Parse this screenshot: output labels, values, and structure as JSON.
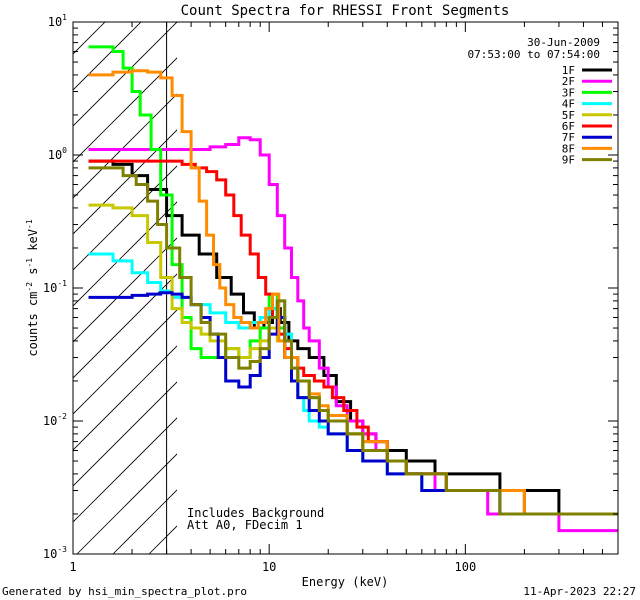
{
  "chart_data": {
    "type": "line",
    "title": "Count Spectra for RHESSI Front Segments",
    "date": "30-Jun-2009",
    "time_range": "07:53:00 to 07:54:00",
    "xlabel": "Energy (keV)",
    "ylabel_parts": [
      "counts cm",
      "-2",
      " s",
      "-1",
      " keV",
      "-1"
    ],
    "xscale": "log",
    "yscale": "log",
    "xlim": [
      1,
      600
    ],
    "ylim": [
      0.001,
      10
    ],
    "x_ticks": [
      {
        "value": 1,
        "label": "1"
      },
      {
        "value": 10,
        "label": "10"
      },
      {
        "value": 100,
        "label": "100"
      }
    ],
    "y_ticks": [
      {
        "value": 10,
        "base": "10",
        "exp": "1"
      },
      {
        "value": 1,
        "base": "10",
        "exp": "0"
      },
      {
        "value": 0.1,
        "base": "10",
        "exp": "-1"
      },
      {
        "value": 0.01,
        "base": "10",
        "exp": "-2"
      },
      {
        "value": 0.001,
        "base": "10",
        "exp": "-3"
      }
    ],
    "hatched_region_keV": [
      1,
      3
    ],
    "annotations": [
      "Includes Background",
      "Att A0, FDecim 1"
    ],
    "footer_left": "Generated by hsi_min_spectra_plot.pro",
    "footer_right": "11-Apr-2023 22:27",
    "legend_position": "top-right",
    "series": [
      {
        "name": "1F",
        "color": "#000000",
        "x": [
          1.2,
          1.6,
          2.0,
          2.4,
          3.0,
          3.6,
          4.4,
          5.4,
          6.4,
          7.4,
          8.4,
          9.4,
          10.4,
          11.4,
          12.6,
          14,
          16,
          19,
          22,
          26,
          30,
          35,
          40,
          50,
          60,
          70,
          80,
          100,
          120,
          150,
          200,
          250,
          300,
          400,
          500,
          600
        ],
        "y": [
          0.9,
          0.85,
          0.7,
          0.55,
          0.35,
          0.25,
          0.18,
          0.12,
          0.09,
          0.065,
          0.05,
          0.055,
          0.07,
          0.055,
          0.04,
          0.035,
          0.03,
          0.022,
          0.014,
          0.01,
          0.008,
          0.007,
          0.006,
          0.005,
          0.005,
          0.004,
          0.004,
          0.004,
          0.004,
          0.003,
          0.003,
          0.003,
          0.002,
          0.002,
          0.002,
          0.002
        ]
      },
      {
        "name": "2F",
        "color": "#ff00ff",
        "x": [
          1.2,
          2.0,
          3.0,
          4.0,
          5.0,
          6.0,
          7.0,
          8.0,
          9.0,
          10.0,
          11.0,
          12.0,
          13.0,
          14.0,
          15.0,
          16.0,
          18,
          20,
          22,
          25,
          30,
          35,
          40,
          50,
          60,
          70,
          80,
          100,
          130,
          160,
          200,
          250,
          300,
          400,
          500,
          600
        ],
        "y": [
          1.1,
          1.1,
          1.1,
          1.1,
          1.15,
          1.2,
          1.35,
          1.3,
          1.0,
          0.6,
          0.35,
          0.2,
          0.12,
          0.08,
          0.05,
          0.04,
          0.025,
          0.018,
          0.013,
          0.01,
          0.008,
          0.006,
          0.005,
          0.004,
          0.004,
          0.003,
          0.003,
          0.003,
          0.002,
          0.002,
          0.002,
          0.002,
          0.0015,
          0.0015,
          0.0015,
          0.0015
        ]
      },
      {
        "name": "3F",
        "color": "#00ff00",
        "x": [
          1.2,
          1.4,
          1.6,
          1.8,
          2.0,
          2.2,
          2.5,
          2.8,
          3.2,
          3.6,
          4.0,
          4.5,
          5.0,
          6.0,
          7.0,
          8.0,
          9.0,
          10.0,
          11.0,
          12,
          13,
          14,
          16,
          18,
          20,
          25,
          30,
          40,
          50,
          60,
          80,
          100,
          150,
          200,
          300,
          400,
          600
        ],
        "y": [
          6.5,
          6.5,
          6.0,
          4.5,
          3.0,
          2.0,
          1.1,
          0.5,
          0.15,
          0.06,
          0.035,
          0.03,
          0.03,
          0.035,
          0.03,
          0.04,
          0.05,
          0.09,
          0.05,
          0.03,
          0.02,
          0.02,
          0.015,
          0.012,
          0.01,
          0.008,
          0.006,
          0.005,
          0.004,
          0.004,
          0.003,
          0.003,
          0.003,
          0.002,
          0.002,
          0.002,
          0.002
        ]
      },
      {
        "name": "4F",
        "color": "#00ffff",
        "x": [
          1.2,
          1.6,
          2.0,
          2.4,
          2.8,
          3.2,
          4.0,
          5.0,
          6.0,
          7.0,
          8.0,
          9.0,
          10.0,
          11.0,
          12,
          13,
          14,
          15,
          16,
          18,
          20,
          25,
          30,
          40,
          50,
          60,
          80,
          100,
          150,
          200,
          300,
          400,
          600
        ],
        "y": [
          0.18,
          0.16,
          0.13,
          0.11,
          0.095,
          0.085,
          0.075,
          0.065,
          0.055,
          0.05,
          0.055,
          0.06,
          0.07,
          0.08,
          0.045,
          0.025,
          0.015,
          0.012,
          0.01,
          0.009,
          0.008,
          0.006,
          0.005,
          0.004,
          0.004,
          0.003,
          0.003,
          0.003,
          0.002,
          0.002,
          0.002,
          0.002,
          0.002
        ]
      },
      {
        "name": "5F",
        "color": "#c8c800",
        "x": [
          1.2,
          1.6,
          2.0,
          2.4,
          2.8,
          3.2,
          3.6,
          4.0,
          4.5,
          5.0,
          6.0,
          7.0,
          8.0,
          9.0,
          10.0,
          11.0,
          12,
          14,
          16,
          18,
          20,
          25,
          30,
          40,
          50,
          60,
          80,
          100,
          150,
          200,
          300,
          400,
          600
        ],
        "y": [
          0.42,
          0.4,
          0.35,
          0.22,
          0.12,
          0.07,
          0.055,
          0.05,
          0.045,
          0.04,
          0.035,
          0.03,
          0.035,
          0.04,
          0.05,
          0.04,
          0.03,
          0.02,
          0.015,
          0.012,
          0.01,
          0.008,
          0.006,
          0.005,
          0.004,
          0.004,
          0.003,
          0.003,
          0.002,
          0.002,
          0.002,
          0.002,
          0.002
        ]
      },
      {
        "name": "6F",
        "color": "#ff0000",
        "x": [
          1.2,
          1.6,
          2.0,
          2.4,
          3.0,
          3.6,
          4.2,
          4.8,
          5.4,
          6.0,
          6.6,
          7.2,
          8.0,
          8.8,
          9.6,
          10.4,
          11.2,
          12,
          13,
          14,
          15,
          17,
          19,
          21,
          24,
          28,
          32,
          40,
          50,
          60,
          80,
          100,
          150,
          200,
          300,
          400,
          600
        ],
        "y": [
          0.9,
          0.9,
          0.9,
          0.9,
          0.9,
          0.85,
          0.8,
          0.75,
          0.65,
          0.5,
          0.35,
          0.25,
          0.18,
          0.12,
          0.09,
          0.06,
          0.045,
          0.035,
          0.03,
          0.025,
          0.022,
          0.02,
          0.018,
          0.015,
          0.012,
          0.009,
          0.007,
          0.005,
          0.004,
          0.004,
          0.003,
          0.003,
          0.003,
          0.002,
          0.002,
          0.002,
          0.002
        ]
      },
      {
        "name": "7F",
        "color": "#0000cc",
        "x": [
          1.2,
          1.6,
          2.0,
          2.4,
          2.8,
          3.2,
          3.6,
          4.0,
          4.5,
          5.0,
          5.5,
          6.0,
          7.0,
          8.0,
          9.0,
          10.0,
          11.0,
          12,
          13,
          14,
          16,
          18,
          20,
          25,
          30,
          40,
          50,
          60,
          80,
          100,
          150,
          200,
          300,
          400,
          600
        ],
        "y": [
          0.085,
          0.085,
          0.088,
          0.09,
          0.092,
          0.09,
          0.085,
          0.075,
          0.06,
          0.045,
          0.03,
          0.02,
          0.018,
          0.022,
          0.03,
          0.045,
          0.06,
          0.03,
          0.02,
          0.015,
          0.012,
          0.01,
          0.008,
          0.006,
          0.005,
          0.004,
          0.004,
          0.003,
          0.003,
          0.003,
          0.002,
          0.002,
          0.002,
          0.002,
          0.002
        ]
      },
      {
        "name": "8F",
        "color": "#ff8c00",
        "x": [
          1.2,
          1.6,
          2.0,
          2.4,
          2.8,
          3.2,
          3.6,
          4.0,
          4.4,
          4.8,
          5.2,
          5.6,
          6.0,
          6.6,
          7.2,
          8.0,
          8.8,
          9.6,
          10.4,
          11.2,
          12,
          14,
          16,
          18,
          20,
          25,
          30,
          40,
          50,
          60,
          80,
          100,
          150,
          200,
          300,
          400,
          600
        ],
        "y": [
          4.0,
          4.2,
          4.3,
          4.2,
          3.8,
          2.8,
          1.5,
          0.8,
          0.45,
          0.25,
          0.15,
          0.1,
          0.075,
          0.06,
          0.055,
          0.05,
          0.055,
          0.07,
          0.09,
          0.04,
          0.03,
          0.02,
          0.016,
          0.013,
          0.011,
          0.008,
          0.007,
          0.005,
          0.004,
          0.004,
          0.003,
          0.003,
          0.003,
          0.002,
          0.002,
          0.002,
          0.002
        ]
      },
      {
        "name": "9F",
        "color": "#7f7f00",
        "x": [
          1.2,
          1.5,
          1.8,
          2.1,
          2.4,
          2.7,
          3.0,
          3.5,
          4.0,
          4.5,
          5.0,
          6.0,
          7.0,
          8.0,
          9.0,
          10.0,
          11.0,
          12,
          13,
          14,
          16,
          18,
          20,
          25,
          30,
          40,
          50,
          60,
          80,
          100,
          150,
          200,
          300,
          400,
          600
        ],
        "y": [
          0.8,
          0.8,
          0.7,
          0.6,
          0.45,
          0.3,
          0.2,
          0.12,
          0.075,
          0.055,
          0.045,
          0.03,
          0.025,
          0.028,
          0.035,
          0.06,
          0.08,
          0.04,
          0.025,
          0.02,
          0.015,
          0.012,
          0.01,
          0.008,
          0.006,
          0.005,
          0.004,
          0.004,
          0.003,
          0.003,
          0.002,
          0.002,
          0.002,
          0.002,
          0.002
        ]
      }
    ]
  }
}
